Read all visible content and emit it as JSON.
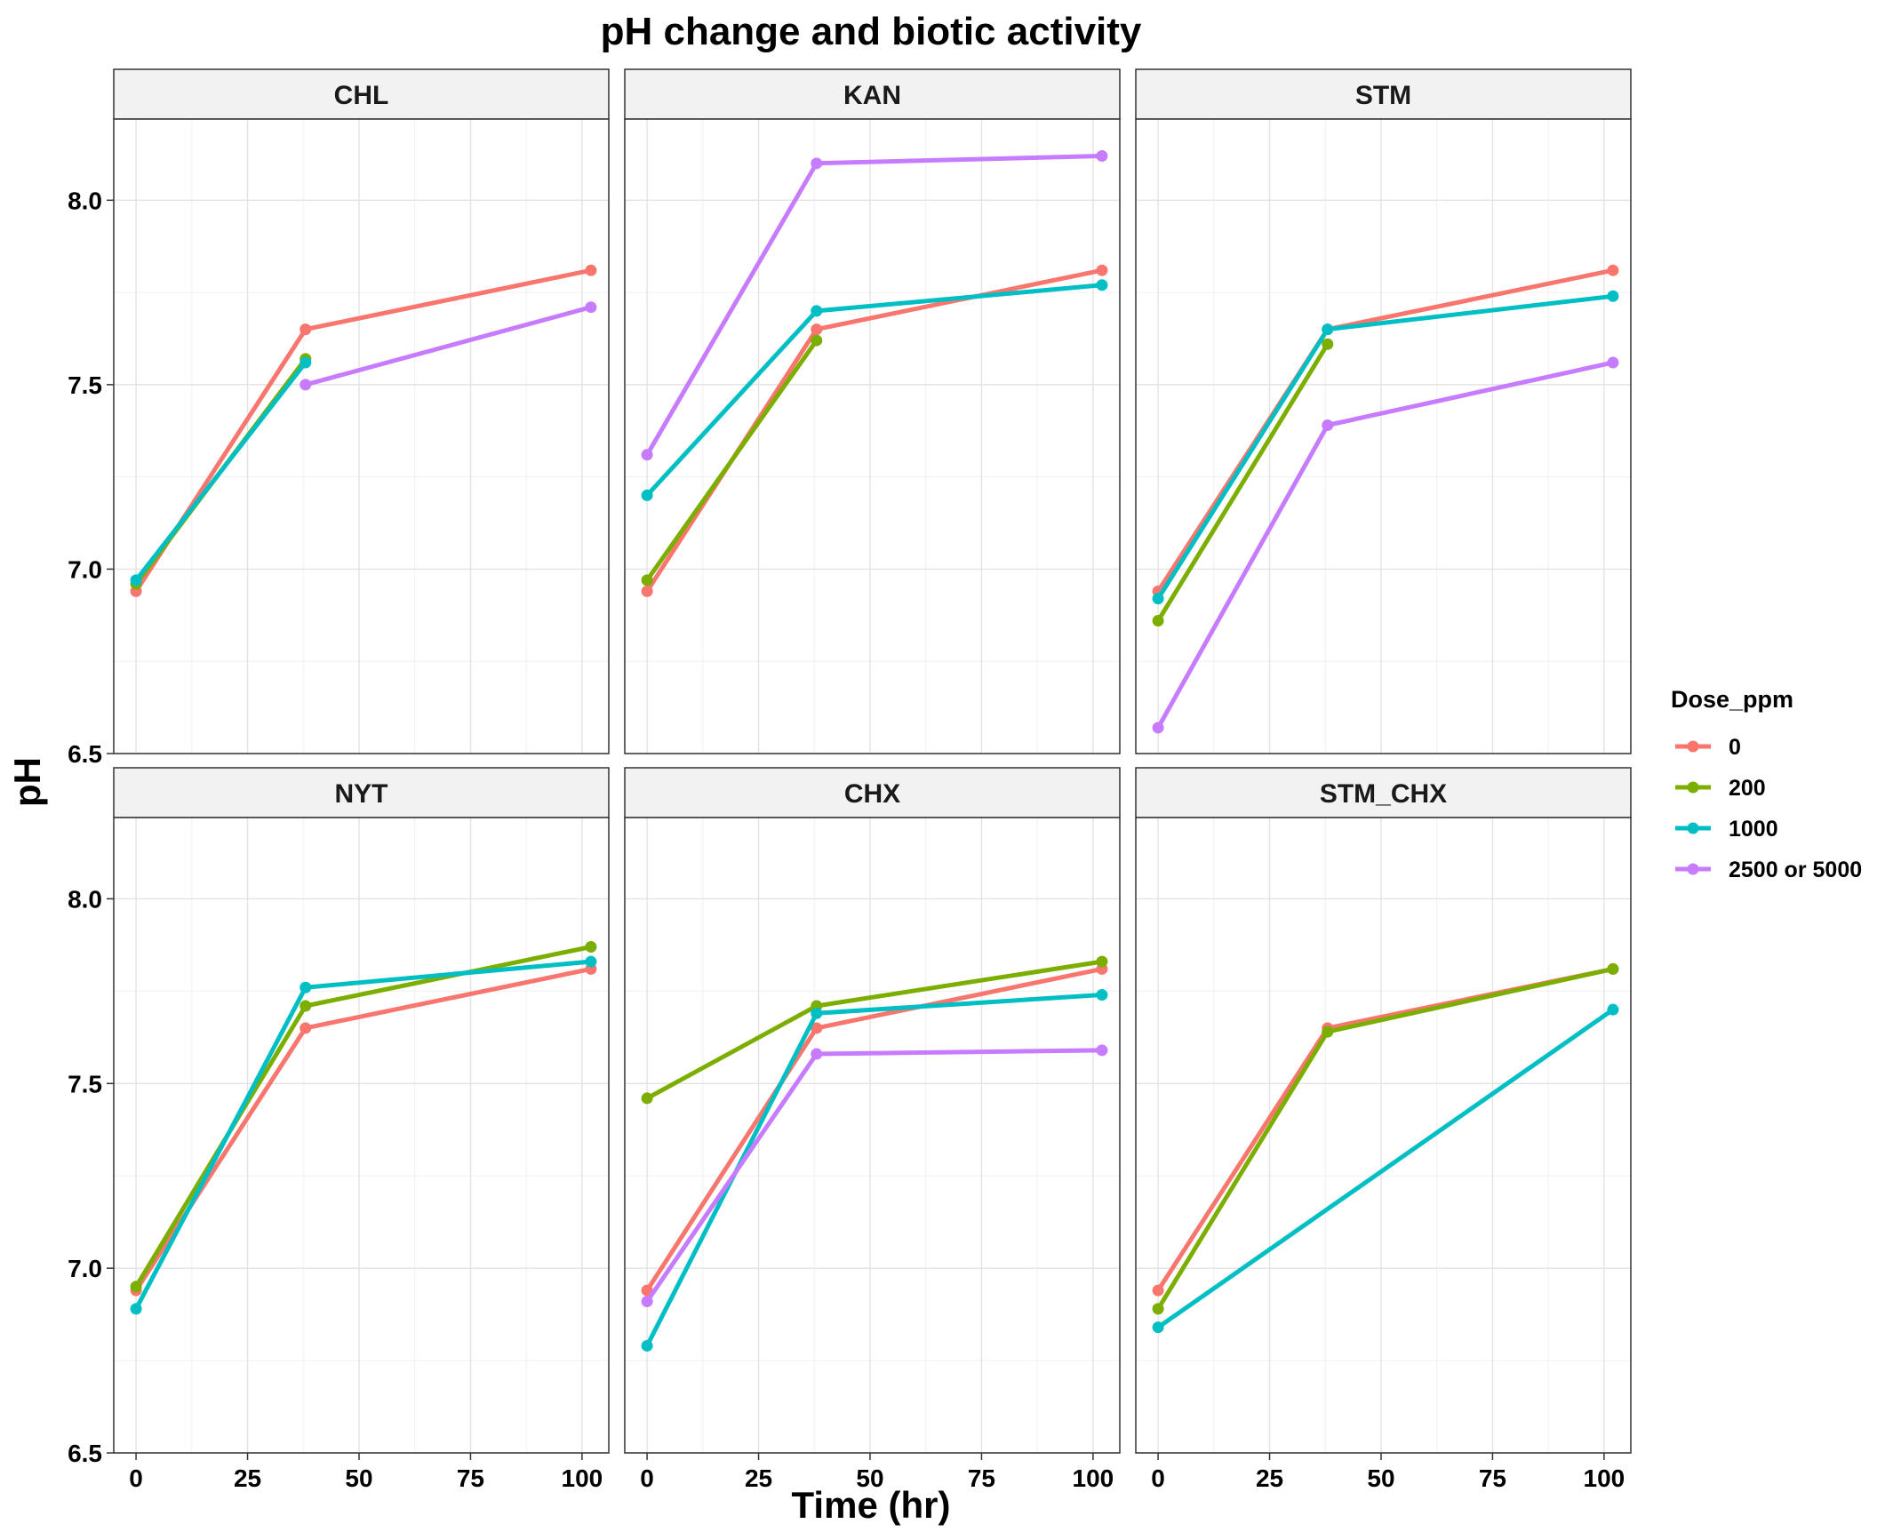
{
  "chart_data": {
    "type": "line",
    "title": "pH change and biotic activity",
    "xlabel": "Time (hr)",
    "ylabel": "pH",
    "xlim": [
      -5,
      106
    ],
    "ylim": [
      6.5,
      8.22
    ],
    "x_ticks": [
      0,
      25,
      50,
      75,
      100
    ],
    "x_tick_labels": [
      "0",
      "25",
      "50",
      "75",
      "100"
    ],
    "y_ticks": [
      6.5,
      7.0,
      7.5,
      8.0
    ],
    "y_tick_labels": [
      "6.5",
      "7.0",
      "7.5",
      "8.0"
    ],
    "grid": true,
    "legend": {
      "title": "Dose_ppm",
      "position": "right",
      "entries": [
        {
          "label": "0",
          "color": "#F8766D"
        },
        {
          "label": "200",
          "color": "#7CAE00"
        },
        {
          "label": "1000",
          "color": "#00BFC4"
        },
        {
          "label": "2500 or 5000",
          "color": "#C77CFF"
        }
      ]
    },
    "panels": [
      {
        "name": "CHL",
        "series": [
          {
            "name": "0",
            "x": [
              0,
              38,
              102
            ],
            "y": [
              6.94,
              7.65,
              7.81
            ]
          },
          {
            "name": "200",
            "x": [
              0,
              38
            ],
            "y": [
              6.96,
              7.57
            ]
          },
          {
            "name": "1000",
            "x": [
              0,
              38
            ],
            "y": [
              6.97,
              7.56
            ]
          },
          {
            "name": "2500 or 5000",
            "x": [
              38,
              102
            ],
            "y": [
              7.5,
              7.71
            ]
          }
        ]
      },
      {
        "name": "KAN",
        "series": [
          {
            "name": "0",
            "x": [
              0,
              38,
              102
            ],
            "y": [
              6.94,
              7.65,
              7.81
            ]
          },
          {
            "name": "200",
            "x": [
              0,
              38
            ],
            "y": [
              6.97,
              7.62
            ]
          },
          {
            "name": "1000",
            "x": [
              0,
              38,
              102
            ],
            "y": [
              7.2,
              7.7,
              7.77
            ]
          },
          {
            "name": "2500 or 5000",
            "x": [
              0,
              38,
              102
            ],
            "y": [
              7.31,
              8.1,
              8.12
            ]
          }
        ]
      },
      {
        "name": "STM",
        "series": [
          {
            "name": "0",
            "x": [
              0,
              38,
              102
            ],
            "y": [
              6.94,
              7.65,
              7.81
            ]
          },
          {
            "name": "200",
            "x": [
              0,
              38
            ],
            "y": [
              6.86,
              7.61
            ]
          },
          {
            "name": "1000",
            "x": [
              0,
              38,
              102
            ],
            "y": [
              6.92,
              7.65,
              7.74
            ]
          },
          {
            "name": "2500 or 5000",
            "x": [
              0,
              38,
              102
            ],
            "y": [
              6.57,
              7.39,
              7.56
            ]
          }
        ]
      },
      {
        "name": "NYT",
        "series": [
          {
            "name": "0",
            "x": [
              0,
              38,
              102
            ],
            "y": [
              6.94,
              7.65,
              7.81
            ]
          },
          {
            "name": "200",
            "x": [
              0,
              38,
              102
            ],
            "y": [
              6.95,
              7.71,
              7.87
            ]
          },
          {
            "name": "1000",
            "x": [
              0,
              38,
              102
            ],
            "y": [
              6.89,
              7.76,
              7.83
            ]
          }
        ]
      },
      {
        "name": "CHX",
        "series": [
          {
            "name": "0",
            "x": [
              0,
              38,
              102
            ],
            "y": [
              6.94,
              7.65,
              7.81
            ]
          },
          {
            "name": "200",
            "x": [
              0,
              38,
              102
            ],
            "y": [
              7.46,
              7.71,
              7.83
            ]
          },
          {
            "name": "1000",
            "x": [
              0,
              38,
              102
            ],
            "y": [
              6.79,
              7.69,
              7.74
            ]
          },
          {
            "name": "2500 or 5000",
            "x": [
              0,
              38,
              102
            ],
            "y": [
              6.91,
              7.58,
              7.59
            ]
          }
        ]
      },
      {
        "name": "STM_CHX",
        "series": [
          {
            "name": "0",
            "x": [
              0,
              38,
              102
            ],
            "y": [
              6.94,
              7.65,
              7.81
            ]
          },
          {
            "name": "200",
            "x": [
              0,
              38,
              102
            ],
            "y": [
              6.89,
              7.64,
              7.81
            ]
          },
          {
            "name": "1000",
            "x": [
              0,
              102
            ],
            "y": [
              6.84,
              7.7
            ]
          }
        ]
      }
    ]
  }
}
